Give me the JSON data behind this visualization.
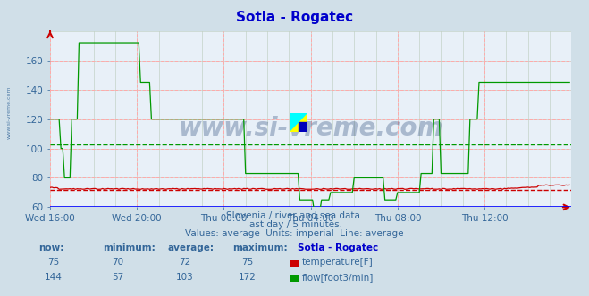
{
  "title": "Sotla - Rogatec",
  "bg_color": "#d0dfe8",
  "plot_bg_color": "#e8f0f8",
  "title_color": "#0000cc",
  "grid_color_major": "#ffaaaa",
  "grid_color_minor": "#bbccbb",
  "ylabel_color": "#336699",
  "xlabel_color": "#336699",
  "text_color": "#336699",
  "watermark": "www.si-vreme.com",
  "subtitle1": "Slovenia / river and sea data.",
  "subtitle2": "last day / 5 minutes.",
  "subtitle3": "Values: average  Units: imperial  Line: average",
  "xlim": [
    0,
    288
  ],
  "ylim": [
    60,
    180
  ],
  "yticks": [
    60,
    80,
    100,
    120,
    140,
    160
  ],
  "xtick_labels": [
    "Wed 16:00",
    "Wed 20:00",
    "Thu 00:00",
    "Thu 04:00",
    "Thu 08:00",
    "Thu 12:00"
  ],
  "xtick_positions": [
    0,
    48,
    96,
    144,
    192,
    240
  ],
  "temp_avg": 72,
  "flow_avg": 103,
  "temp_color": "#cc0000",
  "flow_color": "#009900",
  "legend_title": "Sotla - Rogatec",
  "legend_items": [
    {
      "label": "temperature[F]",
      "color": "#cc0000"
    },
    {
      "label": "flow[foot3/min]",
      "color": "#009900"
    }
  ],
  "stats_temp": {
    "now": 75,
    "min": 70,
    "avg": 72,
    "max": 75
  },
  "stats_flow": {
    "now": 144,
    "min": 57,
    "avg": 103,
    "max": 172
  }
}
